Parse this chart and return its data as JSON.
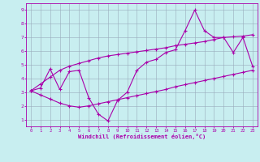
{
  "xlabel": "Windchill (Refroidissement éolien,°C)",
  "xlim": [
    -0.5,
    23.5
  ],
  "ylim": [
    0.5,
    9.5
  ],
  "xticks": [
    0,
    1,
    2,
    3,
    4,
    5,
    6,
    7,
    8,
    9,
    10,
    11,
    12,
    13,
    14,
    15,
    16,
    17,
    18,
    19,
    20,
    21,
    22,
    23
  ],
  "yticks": [
    1,
    2,
    3,
    4,
    5,
    6,
    7,
    8,
    9
  ],
  "bg_color": "#c8eef0",
  "line_color": "#aa00aa",
  "grid_color": "#99aabb",
  "series": {
    "main": [
      3.1,
      3.3,
      4.7,
      3.2,
      4.5,
      4.6,
      2.6,
      1.4,
      0.9,
      2.4,
      3.0,
      4.6,
      5.2,
      5.4,
      5.9,
      6.1,
      7.5,
      9.0,
      7.5,
      7.0,
      7.0,
      5.9,
      7.0,
      4.9
    ],
    "upper": [
      3.1,
      3.6,
      4.1,
      4.6,
      4.9,
      5.1,
      5.3,
      5.5,
      5.65,
      5.75,
      5.85,
      5.95,
      6.05,
      6.15,
      6.25,
      6.4,
      6.5,
      6.6,
      6.7,
      6.85,
      7.0,
      7.05,
      7.1,
      7.2
    ],
    "lower": [
      3.1,
      2.8,
      2.5,
      2.2,
      2.0,
      1.9,
      2.0,
      2.15,
      2.3,
      2.45,
      2.6,
      2.75,
      2.9,
      3.05,
      3.2,
      3.4,
      3.55,
      3.7,
      3.85,
      4.0,
      4.15,
      4.3,
      4.45,
      4.6
    ]
  }
}
